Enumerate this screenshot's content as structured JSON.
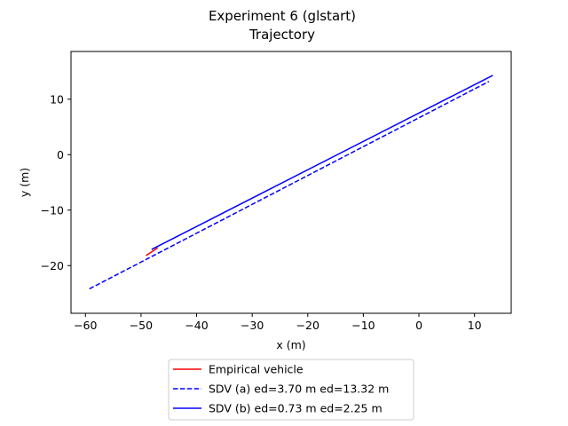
{
  "chart_data": {
    "type": "line",
    "title": "Experiment 6 (glstart)",
    "subtitle": "Trajectory",
    "xlabel": "x (m)",
    "ylabel": "y (m)",
    "xlim": [
      -62.6,
      16.6
    ],
    "ylim": [
      -28.6,
      18.6
    ],
    "xticks": [
      -60,
      -50,
      -40,
      -30,
      -20,
      -10,
      0,
      10
    ],
    "yticks": [
      -20,
      -10,
      0,
      10
    ],
    "xtick_labels": [
      "−60",
      "−50",
      "−40",
      "−30",
      "−20",
      "−10",
      "0",
      "10"
    ],
    "ytick_labels": [
      "−20",
      "−10",
      "0",
      "10"
    ],
    "grid": false,
    "legend_position": "below",
    "series": [
      {
        "name": "Empirical vehicle",
        "color": "#ff0000",
        "style": "solid",
        "x": [
          -49.1,
          -47.0
        ],
        "y": [
          -18.2,
          -16.8
        ]
      },
      {
        "name": "SDV (a) ed=3.70 m ed=13.32 m",
        "color": "#0000ff",
        "style": "dashed",
        "x": [
          -59.3,
          12.6
        ],
        "y": [
          -24.2,
          13.2
        ]
      },
      {
        "name": "SDV (b) ed=0.73 m ed=2.25 m",
        "color": "#0000ff",
        "style": "solid",
        "x": [
          -48.1,
          13.3
        ],
        "y": [
          -17.1,
          14.3
        ]
      }
    ]
  }
}
